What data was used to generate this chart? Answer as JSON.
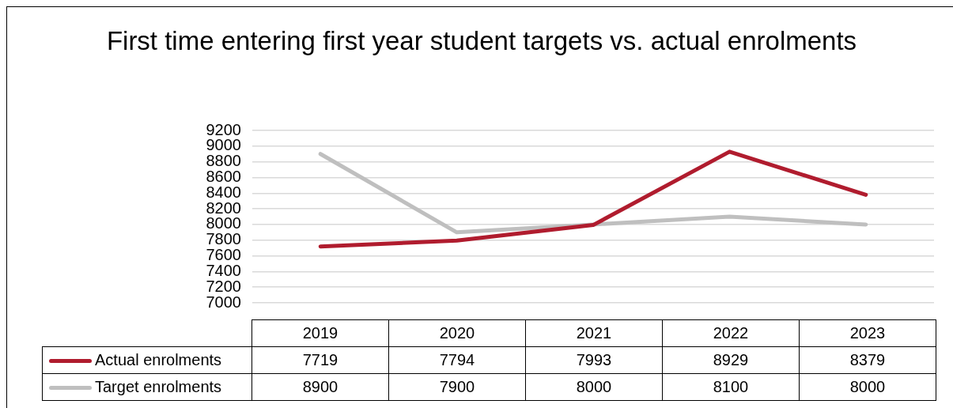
{
  "chart_data": {
    "type": "line",
    "title": "First time entering first year student targets vs. actual enrolments",
    "categories": [
      "2019",
      "2020",
      "2021",
      "2022",
      "2023"
    ],
    "series": [
      {
        "name": "Actual enrolments",
        "color": "#b01c2e",
        "values": [
          7719,
          7794,
          7993,
          8929,
          8379
        ]
      },
      {
        "name": "Target enrolments",
        "color": "#bfbfbf",
        "values": [
          8900,
          7900,
          8000,
          8100,
          8000
        ]
      }
    ],
    "ylim": [
      7000,
      9200
    ],
    "yticks": [
      7000,
      7200,
      7400,
      7600,
      7800,
      8000,
      8200,
      8400,
      8600,
      8800,
      9000,
      9200
    ],
    "grid": "y",
    "legend": "bottom",
    "marker": "none",
    "line_style": "solid",
    "data_labels": true
  }
}
